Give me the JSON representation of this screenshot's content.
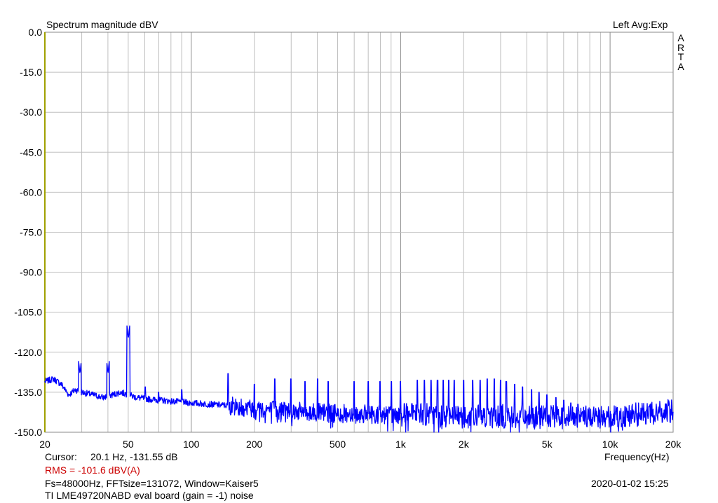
{
  "header": {
    "title": "Spectrum magnitude dBV",
    "channel_info": "Left  Avg:Exp",
    "brand_vertical": [
      "A",
      "R",
      "T",
      "A"
    ]
  },
  "footer": {
    "cursor_label": "Cursor:",
    "cursor_value": "20.1 Hz, -131.55 dB",
    "rms": "RMS = -101.6 dBV(A)",
    "fft_params": "Fs=48000Hz, FFTsize=131072, Window=Kaiser5",
    "timestamp": "2020-01-02  15:25",
    "description": "TI LME49720NABD eval board (gain = -1) noise"
  },
  "colors": {
    "trace": "#0000ff",
    "rms_text": "#cc0000",
    "grid": "#bfbfbf",
    "left_axis": "#a0a000"
  },
  "chart_data": {
    "type": "line",
    "title": "Spectrum magnitude dBV",
    "xlabel": "Frequency(Hz)",
    "ylabel": "",
    "x_scale": "log",
    "xlim": [
      20,
      20000
    ],
    "ylim": [
      -150,
      0
    ],
    "grid": true,
    "x_ticks": [
      20,
      50,
      100,
      200,
      500,
      1000,
      2000,
      5000,
      10000,
      20000
    ],
    "x_tick_labels": [
      "20",
      "50",
      "100",
      "200",
      "500",
      "1k",
      "2k",
      "5k",
      "10k",
      "20k"
    ],
    "y_ticks": [
      0,
      -15,
      -30,
      -45,
      -60,
      -75,
      -90,
      -105,
      -120,
      -135,
      -150
    ],
    "y_tick_labels": [
      "0.0",
      "-15.0",
      "-30.0",
      "-45.0",
      "-60.0",
      "-75.0",
      "-90.0",
      "-105.0",
      "-120.0",
      "-135.0",
      "-150.0"
    ],
    "series": [
      {
        "name": "",
        "floor_points": [
          [
            20,
            -131
          ],
          [
            22,
            -130
          ],
          [
            24,
            -132
          ],
          [
            26,
            -136
          ],
          [
            28,
            -134
          ],
          [
            30,
            -135
          ],
          [
            34,
            -136
          ],
          [
            38,
            -137
          ],
          [
            42,
            -136
          ],
          [
            46,
            -135
          ],
          [
            55,
            -137
          ],
          [
            70,
            -138
          ],
          [
            100,
            -139
          ],
          [
            150,
            -140
          ],
          [
            200,
            -141
          ],
          [
            300,
            -142
          ],
          [
            500,
            -143
          ],
          [
            1000,
            -143.5
          ],
          [
            2000,
            -144
          ],
          [
            3000,
            -144
          ],
          [
            5000,
            -144.5
          ],
          [
            10000,
            -144
          ],
          [
            15000,
            -143
          ],
          [
            20000,
            -142
          ]
        ],
        "spikes": [
          [
            29.5,
            -128
          ],
          [
            40,
            -128
          ],
          [
            50,
            -115
          ],
          [
            60,
            -133
          ],
          [
            70,
            -135
          ],
          [
            90,
            -134
          ],
          [
            150,
            -128
          ],
          [
            200,
            -132
          ],
          [
            250,
            -130
          ],
          [
            300,
            -130
          ],
          [
            350,
            -131
          ],
          [
            400,
            -130
          ],
          [
            450,
            -131
          ],
          [
            600,
            -131
          ],
          [
            700,
            -131
          ],
          [
            800,
            -131
          ],
          [
            900,
            -131
          ],
          [
            1000,
            -131
          ],
          [
            1200,
            -130.5
          ],
          [
            1300,
            -130.5
          ],
          [
            1400,
            -130.5
          ],
          [
            1500,
            -130.5
          ],
          [
            1600,
            -130.5
          ],
          [
            1700,
            -130.5
          ],
          [
            1800,
            -130.5
          ],
          [
            2000,
            -130.5
          ],
          [
            2200,
            -130.5
          ],
          [
            2400,
            -130.5
          ],
          [
            2600,
            -130
          ],
          [
            2800,
            -130
          ],
          [
            3000,
            -130.5
          ],
          [
            3200,
            -131
          ],
          [
            3500,
            -132
          ],
          [
            3800,
            -133
          ],
          [
            4200,
            -134
          ],
          [
            4600,
            -135
          ],
          [
            5000,
            -136
          ],
          [
            5500,
            -137
          ],
          [
            6000,
            -138
          ],
          [
            6500,
            -139
          ],
          [
            7000,
            -139.5
          ]
        ]
      }
    ]
  }
}
